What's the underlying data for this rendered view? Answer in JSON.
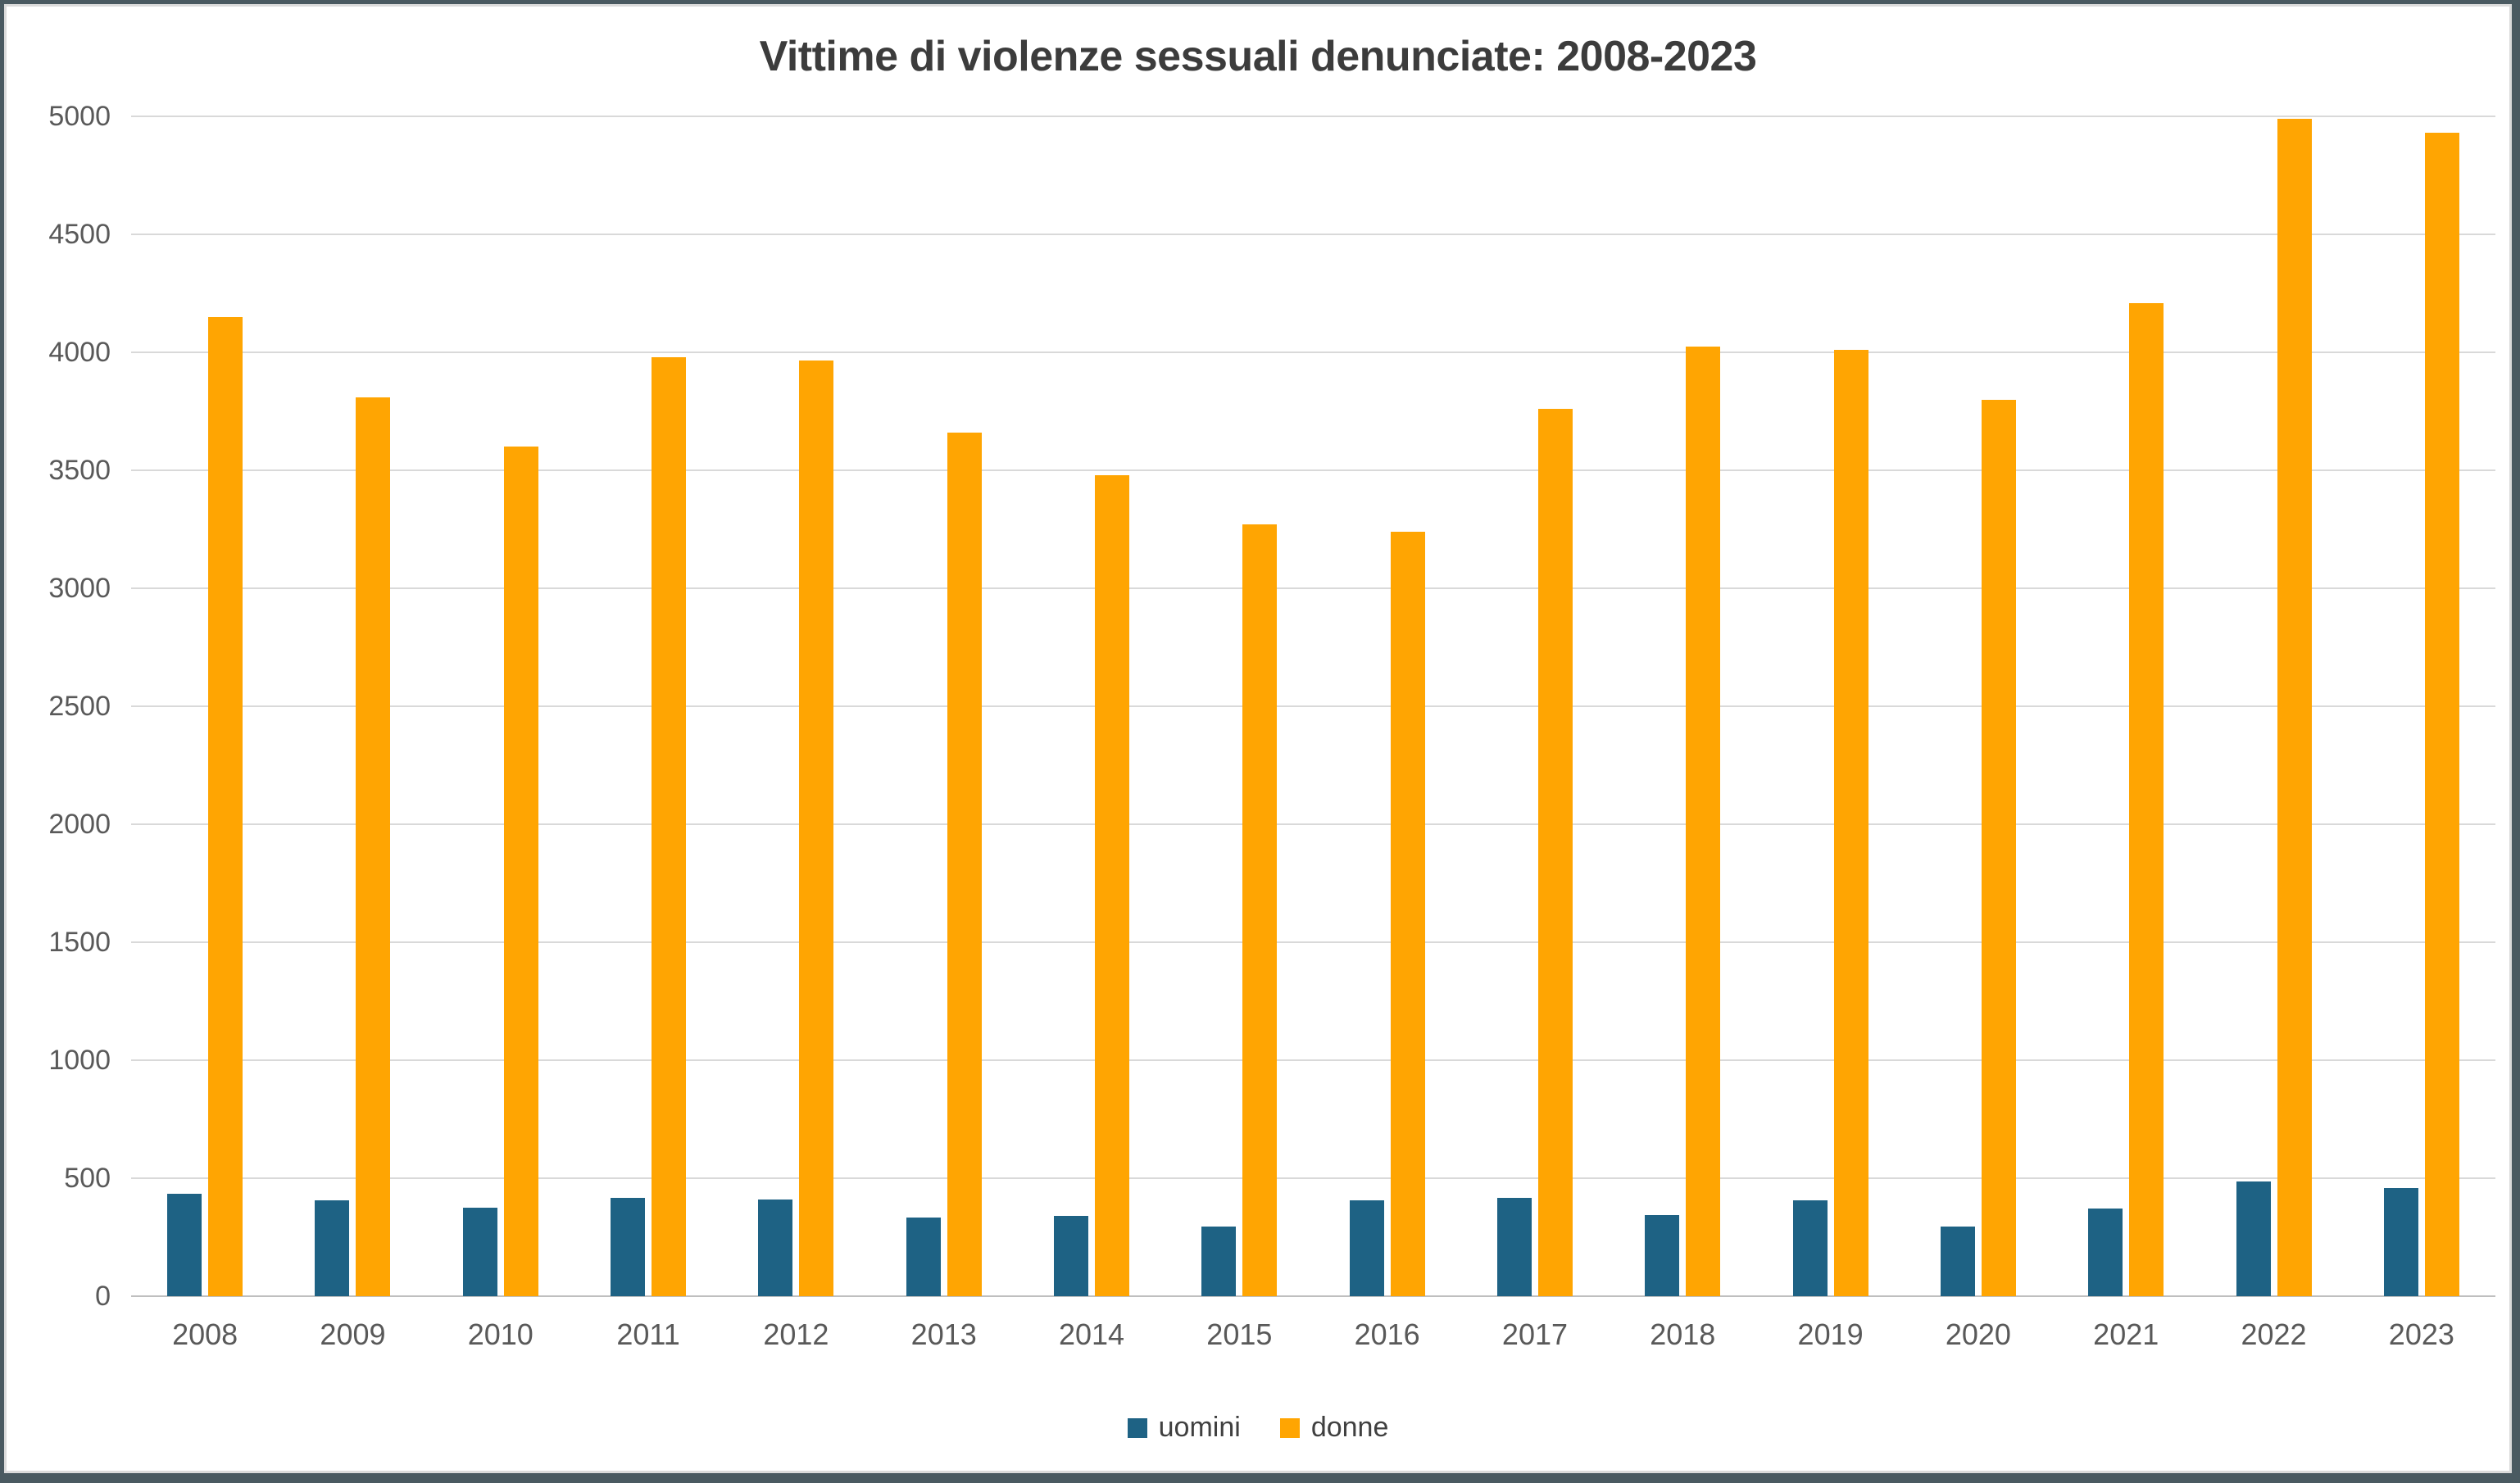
{
  "title": "Vittime di violenze sessuali denunciate: 2008-2023",
  "colors": {
    "uomini": "#1E6284",
    "donne": "#FFA502",
    "gridline": "#D9D9D9",
    "axis_line": "#BFBFBF",
    "tick_label": "#595959",
    "title_text": "#3C3C3C",
    "frame": "#4A5A61"
  },
  "chart_data": {
    "type": "bar",
    "title": "Vittime di violenze sessuali denunciate: 2008-2023",
    "xlabel": "",
    "ylabel": "",
    "categories": [
      "2008",
      "2009",
      "2010",
      "2011",
      "2012",
      "2013",
      "2014",
      "2015",
      "2016",
      "2017",
      "2018",
      "2019",
      "2020",
      "2021",
      "2022",
      "2023"
    ],
    "series": [
      {
        "name": "uomini",
        "color": "#1E6284",
        "values": [
          435,
          405,
          375,
          415,
          410,
          335,
          340,
          295,
          405,
          415,
          345,
          405,
          295,
          370,
          485,
          460
        ]
      },
      {
        "name": "donne",
        "color": "#FFA502",
        "values": [
          4150,
          3810,
          3600,
          3980,
          3965,
          3660,
          3480,
          3270,
          3240,
          3760,
          4025,
          4010,
          3800,
          4210,
          4990,
          4930
        ]
      }
    ],
    "ylim": [
      0,
      5000
    ],
    "yticks": [
      0,
      500,
      1000,
      1500,
      2000,
      2500,
      3000,
      3500,
      4000,
      4500,
      5000
    ],
    "grid": true,
    "legend_position": "bottom"
  }
}
